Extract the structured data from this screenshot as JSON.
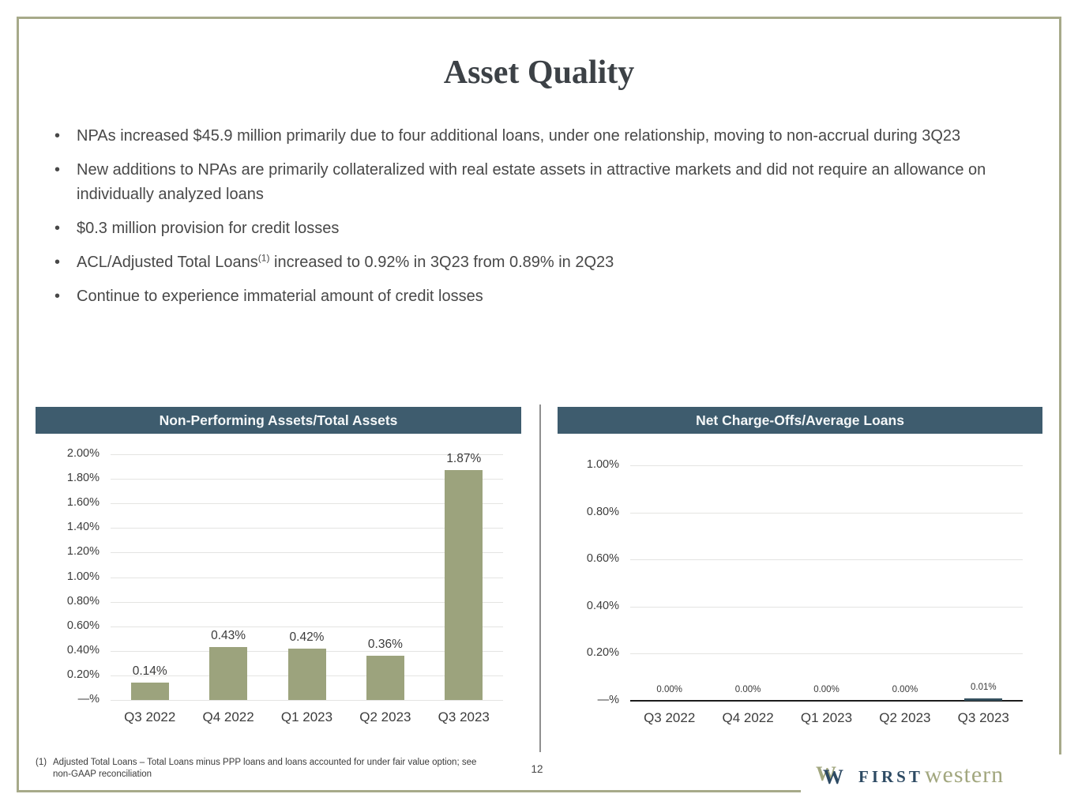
{
  "slide": {
    "title": "Asset Quality",
    "page_number": "12"
  },
  "bullets": [
    {
      "text": "NPAs increased $45.9 million primarily due to four additional loans, under one relationship, moving to non-accrual during 3Q23"
    },
    {
      "text": "New additions to NPAs are primarily collateralized with real estate assets in attractive markets and did not require an allowance on individually analyzed loans"
    },
    {
      "text": "$0.3 million provision for credit losses"
    },
    {
      "pre": "ACL/Adjusted Total Loans",
      "sup": "(1)",
      "post": " increased to 0.92% in 3Q23 from 0.89% in 2Q23"
    },
    {
      "text": "Continue to experience immaterial amount of credit losses"
    }
  ],
  "footnote": {
    "marker": "(1)",
    "line1": "Adjusted Total Loans –  Total Loans minus PPP loans and loans accounted for under fair value option; see",
    "line2": "non-GAAP reconciliation"
  },
  "logo": {
    "first": "FIRST",
    "western": "western",
    "mark": "overlapping-w-monogram"
  },
  "colors": {
    "frame_olive": "#a7aa8a",
    "chart_header_slate": "#3e5c6e",
    "bar_sage": "#9ca37d",
    "bar_dark_slate": "#34505e",
    "logo_blue": "#2d4a63",
    "logo_olive": "#a2a77f"
  },
  "chart_data": [
    {
      "type": "bar",
      "title": "Non-Performing Assets/Total Assets",
      "categories": [
        "Q3 2022",
        "Q4 2022",
        "Q1 2023",
        "Q2 2023",
        "Q3 2023"
      ],
      "values": [
        0.14,
        0.43,
        0.42,
        0.36,
        1.87
      ],
      "data_labels": [
        "0.14%",
        "0.43%",
        "0.42%",
        "0.36%",
        "1.87%"
      ],
      "xlabel": "",
      "ylabel": "",
      "ylim": [
        0,
        2.0
      ],
      "ytick_labels": [
        "2.00%",
        "1.80%",
        "1.60%",
        "1.40%",
        "1.20%",
        "1.00%",
        "0.80%",
        "0.60%",
        "0.40%",
        "0.20%",
        "—%"
      ],
      "bar_color": "#9ca37d",
      "grid": true,
      "axis_line": false,
      "legend": "none"
    },
    {
      "type": "bar",
      "title": "Net Charge-Offs/Average Loans",
      "categories": [
        "Q3 2022",
        "Q4 2022",
        "Q1 2023",
        "Q2 2023",
        "Q3 2023"
      ],
      "values": [
        0.0,
        0.0,
        0.0,
        0.0,
        0.01
      ],
      "data_labels": [
        "0.00%",
        "0.00%",
        "0.00%",
        "0.00%",
        "0.01%"
      ],
      "xlabel": "",
      "ylabel": "",
      "ylim": [
        0,
        1.0
      ],
      "ytick_labels": [
        "1.00%",
        "0.80%",
        "0.60%",
        "0.40%",
        "0.20%",
        "—%"
      ],
      "bar_color": "#34505e",
      "grid": true,
      "axis_line": true,
      "legend": "none"
    }
  ]
}
